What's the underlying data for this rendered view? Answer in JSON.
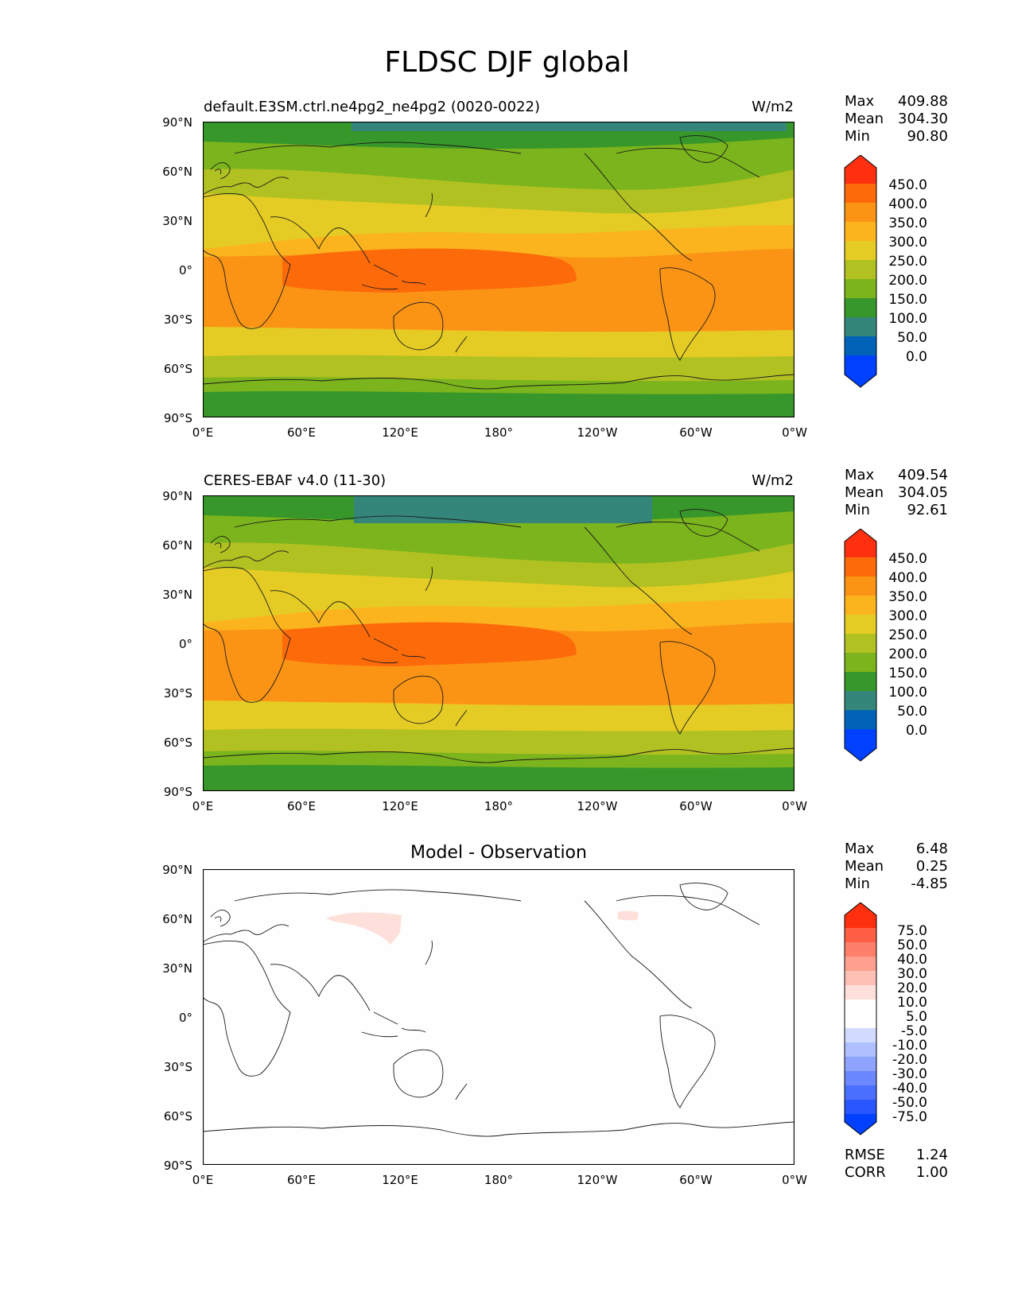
{
  "main_title": "FLDSC DJF global",
  "axes": {
    "yticks": [
      "90°N",
      "60°N",
      "30°N",
      "0°",
      "30°S",
      "60°S",
      "90°S"
    ],
    "xticks": [
      "0°E",
      "60°E",
      "120°E",
      "180°",
      "120°W",
      "60°W",
      "0°W"
    ]
  },
  "colors": {
    "fill_levels": [
      "#0040ff",
      "#0063b7",
      "#35867a",
      "#38972a",
      "#7bb41c",
      "#b1c122",
      "#e5cc25",
      "#fbb41e",
      "#fb9415",
      "#fd6a0a",
      "#ff3010"
    ],
    "diff_levels": [
      "#0040ff",
      "#2956ff",
      "#4a6fff",
      "#6b88ff",
      "#8ea3ff",
      "#b0bfff",
      "#d2dbff",
      "#fefefe",
      "#fedfda",
      "#febfb5",
      "#fe9f8f",
      "#fe7f6a",
      "#fe5f45",
      "#ff3010"
    ]
  },
  "panels": [
    {
      "title": "default.E3SM.ctrl.ne4pg2_ne4pg2 (0020-0022)",
      "units": "W/m2",
      "stats": {
        "max_label": "Max",
        "max": "409.88",
        "mean_label": "Mean",
        "mean": "304.30",
        "min_label": "Min",
        "min": "90.80"
      },
      "colorbar_labels": [
        "450.0",
        "400.0",
        "350.0",
        "300.0",
        "250.0",
        "200.0",
        "150.0",
        "100.0",
        "50.0",
        "0.0"
      ]
    },
    {
      "title": "CERES-EBAF v4.0 (11-30)",
      "units": "W/m2",
      "stats": {
        "max_label": "Max",
        "max": "409.54",
        "mean_label": "Mean",
        "mean": "304.05",
        "min_label": "Min",
        "min": "92.61"
      },
      "colorbar_labels": [
        "450.0",
        "400.0",
        "350.0",
        "300.0",
        "250.0",
        "200.0",
        "150.0",
        "100.0",
        "50.0",
        "0.0"
      ]
    },
    {
      "title": "Model - Observation",
      "stats": {
        "max_label": "Max",
        "max": "6.48",
        "mean_label": "Mean",
        "mean": "0.25",
        "min_label": "Min",
        "min": "-4.85"
      },
      "colorbar_labels": [
        "75.0",
        "50.0",
        "40.0",
        "30.0",
        "20.0",
        "10.0",
        "5.0",
        "-5.0",
        "-10.0",
        "-20.0",
        "-30.0",
        "-40.0",
        "-50.0",
        "-75.0"
      ],
      "rmse_label": "RMSE",
      "rmse": "1.24",
      "corr_label": "CORR",
      "corr": "1.00"
    }
  ]
}
